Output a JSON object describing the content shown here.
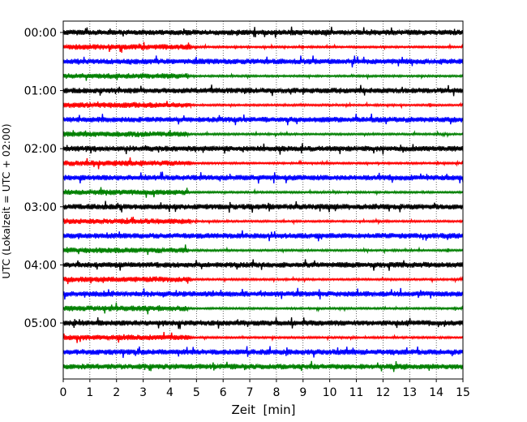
{
  "chart_data": {
    "type": "line",
    "title": "",
    "xlabel": "Zeit  [min]",
    "ylabel": "UTC (Lokalzeit = UTC + 02:00)",
    "xlim": [
      0,
      15
    ],
    "x_ticks": [
      "0",
      "1",
      "2",
      "3",
      "4",
      "5",
      "6",
      "7",
      "8",
      "9",
      "10",
      "11",
      "12",
      "13",
      "14",
      "15"
    ],
    "y_tick_labels": [
      "00:00",
      "01:00",
      "02:00",
      "03:00",
      "04:00",
      "05:00"
    ],
    "y_tick_trace_index": [
      0,
      4,
      8,
      12,
      16,
      20
    ],
    "trace_interval_minutes": 15,
    "trace_count": 24,
    "last_trace_end_minute": 15,
    "colors": [
      "#000000",
      "#ff0000",
      "#0000ff",
      "#008000"
    ],
    "grid": "vertical dotted lines at each minute"
  }
}
